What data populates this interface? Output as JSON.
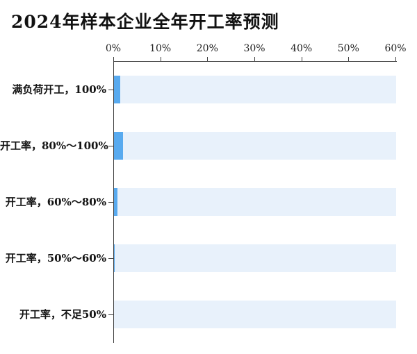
{
  "chart_data": {
    "type": "bar",
    "orientation": "horizontal",
    "title": "2024年样本企业全年开工率预测",
    "categories": [
      "满负荷开工，100%",
      "开工率，80%～100%",
      "开工率，60%～80%",
      "开工率，50%～60%",
      "开工率，不足50%"
    ],
    "values": [
      1.3,
      1.9,
      0.8,
      0.2,
      0.0
    ],
    "unit": "%",
    "xlim": [
      0,
      60
    ],
    "x_ticks": [
      "0%",
      "10%",
      "20%",
      "30%",
      "40%",
      "50%",
      "60%"
    ],
    "x_tick_values": [
      0,
      10,
      20,
      30,
      40,
      50,
      60
    ],
    "grid": false,
    "legend": "none",
    "track_full_width_value": 60,
    "colors": {
      "bar": "#58aaef",
      "bar_track": "#e8f1fb",
      "axis": "#3f3f3f",
      "text": "#141414"
    }
  }
}
